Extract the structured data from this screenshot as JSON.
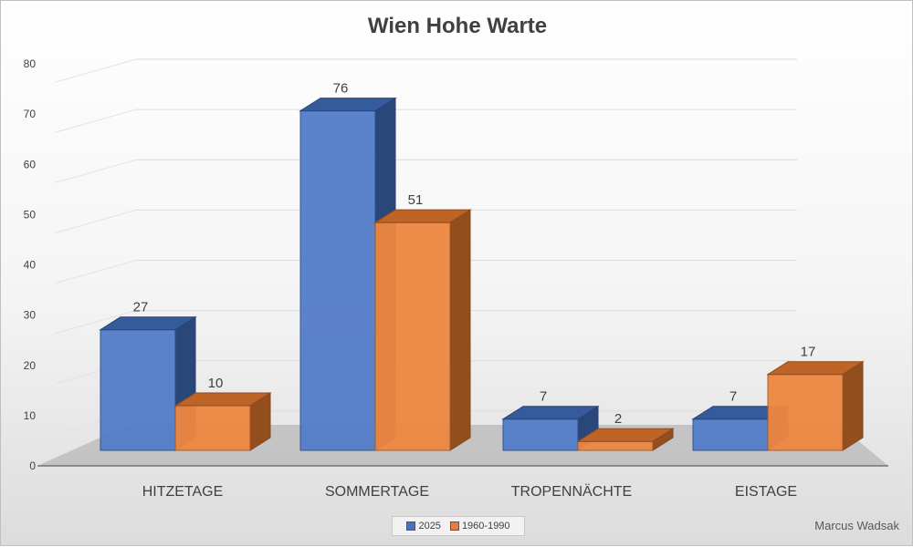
{
  "chart_data": {
    "type": "bar",
    "title": "Wien Hohe Warte",
    "categories": [
      "HITZETAGE",
      "SOMMERTAGE",
      "TROPENNÄCHTE",
      "EISTAGE"
    ],
    "series": [
      {
        "name": "2025",
        "values": [
          27,
          76,
          7,
          7
        ],
        "color": "#4472c4"
      },
      {
        "name": "1960-1990",
        "values": [
          10,
          51,
          2,
          17
        ],
        "color": "#ed7d31"
      }
    ],
    "xlabel": "",
    "ylabel": "",
    "ylim": [
      0,
      80
    ],
    "yticks": [
      0,
      10,
      20,
      30,
      40,
      50,
      60,
      70,
      80
    ],
    "grid": true,
    "legend": "bottom",
    "data_labels": true
  },
  "footer": {
    "author": "Marcus Wadsak"
  }
}
